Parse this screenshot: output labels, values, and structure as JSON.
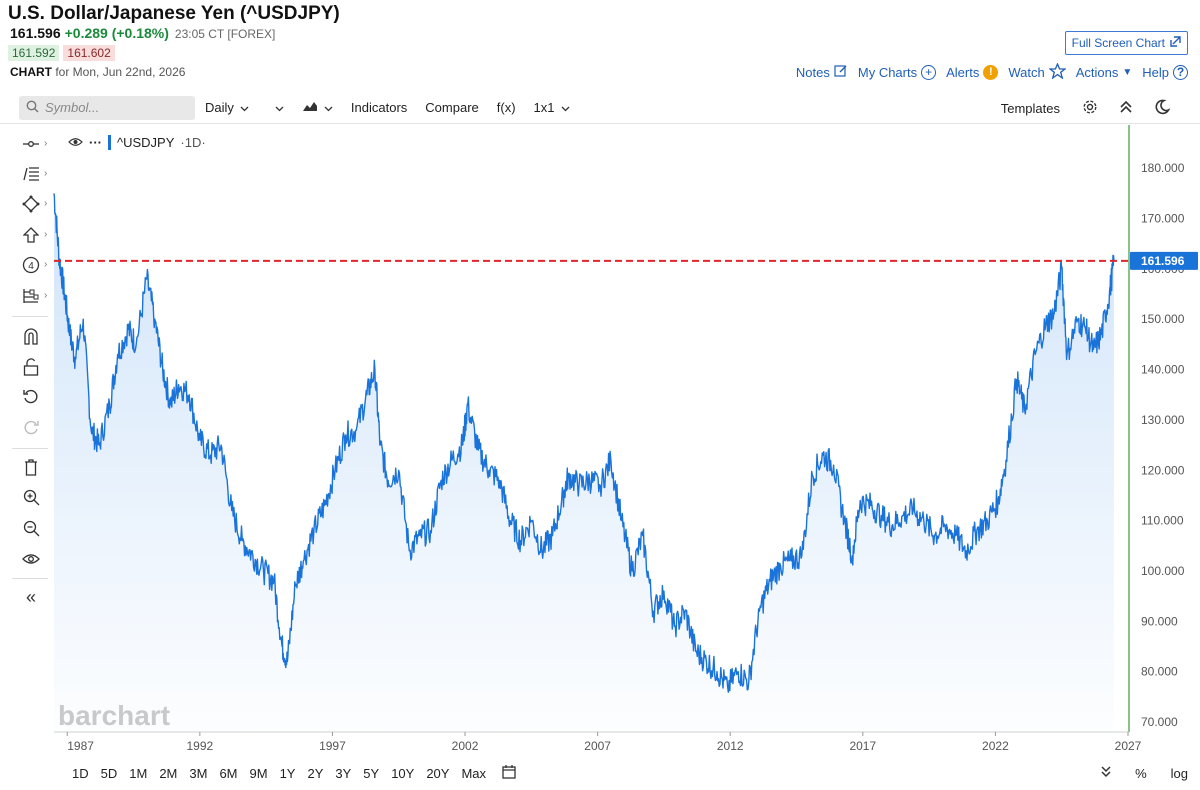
{
  "header": {
    "title": "U.S. Dollar/Japanese Yen (^USDJPY)",
    "last": "161.596",
    "change": "+0.289 (+0.18%)",
    "time": "23:05 CT [FOREX]",
    "bid": "161.592",
    "ask": "161.602",
    "chart_label": "CHART",
    "chart_for": "for Mon, Jun 22nd, 2026",
    "full_screen": "Full Screen Chart"
  },
  "links": {
    "notes": "Notes",
    "my_charts": "My Charts",
    "alerts": "Alerts",
    "watch": "Watch",
    "actions": "Actions",
    "help": "Help"
  },
  "toolbar": {
    "symbol_placeholder": "Symbol...",
    "interval": "Daily",
    "indicators": "Indicators",
    "compare": "Compare",
    "fx": "f(x)",
    "layout": "1x1",
    "templates": "Templates"
  },
  "legend": {
    "symbol": "^USDJPY",
    "interval": "·1D·"
  },
  "watermark": "barchart",
  "ranges": [
    "1D",
    "5D",
    "1M",
    "2M",
    "3M",
    "6M",
    "9M",
    "1Y",
    "2Y",
    "3Y",
    "5Y",
    "10Y",
    "20Y",
    "Max"
  ],
  "range_right": {
    "percent": "%",
    "log": "log"
  },
  "colors": {
    "line": "#1a73d8",
    "area_top": "#cfe3f9",
    "price_line": "#e0252b",
    "price_badge": "#1a73d8",
    "axis_line": "#3a9a3a"
  },
  "chart_data": {
    "type": "area",
    "title": "U.S. Dollar/Japanese Yen (^USDJPY)",
    "series_name": "^USDJPY",
    "xlabel": "",
    "ylabel": "",
    "xlim": [
      1986.5,
      2027.0
    ],
    "ylim": [
      68,
      187
    ],
    "x_ticks": [
      1987,
      1992,
      1997,
      2002,
      2007,
      2012,
      2017,
      2022,
      2027
    ],
    "y_ticks": [
      70,
      80,
      90,
      100,
      110,
      120,
      130,
      140,
      150,
      160,
      170,
      180
    ],
    "y_tick_labels": [
      "70.000",
      "80.000",
      "90.000",
      "100.000",
      "110.000",
      "120.000",
      "130.000",
      "140.000",
      "150.000",
      "160.000",
      "170.000",
      "180.000"
    ],
    "x_tick_labels": [
      "1987",
      "1992",
      "1997",
      "2002",
      "2007",
      "2012",
      "2017",
      "2022",
      "2027"
    ],
    "last_price": 161.596,
    "last_price_label": "161.596",
    "grid": false,
    "x": [
      1986.5,
      1986.7,
      1986.9,
      1987.1,
      1987.3,
      1987.6,
      1987.9,
      1988.2,
      1988.6,
      1988.9,
      1989.3,
      1989.6,
      1990.0,
      1990.3,
      1990.6,
      1990.9,
      1991.2,
      1991.6,
      1992.0,
      1992.4,
      1992.8,
      1993.2,
      1993.6,
      1994.0,
      1994.4,
      1994.8,
      1995.1,
      1995.3,
      1995.6,
      1995.9,
      1996.3,
      1996.7,
      1997.1,
      1997.5,
      1997.9,
      1998.3,
      1998.6,
      1998.8,
      1999.1,
      1999.5,
      1999.9,
      2000.3,
      2000.7,
      2001.1,
      2001.5,
      2001.9,
      2002.1,
      2002.5,
      2002.9,
      2003.3,
      2003.7,
      2004.1,
      2004.5,
      2004.9,
      2005.3,
      2005.7,
      2005.9,
      2006.3,
      2006.7,
      2007.1,
      2007.5,
      2007.9,
      2008.3,
      2008.7,
      2009.1,
      2009.5,
      2009.9,
      2010.3,
      2010.7,
      2011.1,
      2011.5,
      2011.9,
      2012.3,
      2012.7,
      2013.1,
      2013.5,
      2013.9,
      2014.3,
      2014.7,
      2015.1,
      2015.5,
      2015.9,
      2016.3,
      2016.6,
      2016.9,
      2017.3,
      2017.7,
      2018.1,
      2018.5,
      2018.9,
      2019.3,
      2019.7,
      2020.1,
      2020.5,
      2020.9,
      2021.3,
      2021.7,
      2022.1,
      2022.4,
      2022.8,
      2023.1,
      2023.5,
      2023.9,
      2024.2,
      2024.5,
      2024.7,
      2025.1,
      2025.4,
      2025.7,
      2026.0,
      2026.3,
      2026.47
    ],
    "y": [
      175,
      162,
      155,
      147,
      142,
      150,
      128,
      125,
      133,
      143,
      148,
      145,
      158,
      150,
      140,
      133,
      137,
      135,
      126,
      123,
      125,
      112,
      106,
      103,
      100,
      98,
      85,
      82,
      97,
      102,
      108,
      113,
      120,
      127,
      128,
      135,
      140,
      125,
      118,
      120,
      104,
      107,
      108,
      118,
      122,
      125,
      133,
      124,
      120,
      118,
      110,
      106,
      110,
      104,
      107,
      115,
      119,
      117,
      118,
      117,
      122,
      110,
      100,
      107,
      92,
      96,
      89,
      92,
      84,
      82,
      80,
      77,
      80,
      78,
      92,
      98,
      101,
      102,
      103,
      119,
      123,
      121,
      110,
      103,
      114,
      113,
      111,
      109,
      111,
      112,
      110,
      107,
      109,
      107,
      104,
      108,
      110,
      114,
      122,
      138,
      132,
      143,
      149,
      151,
      160,
      143,
      150,
      148,
      144,
      147,
      155,
      161.596
    ]
  }
}
